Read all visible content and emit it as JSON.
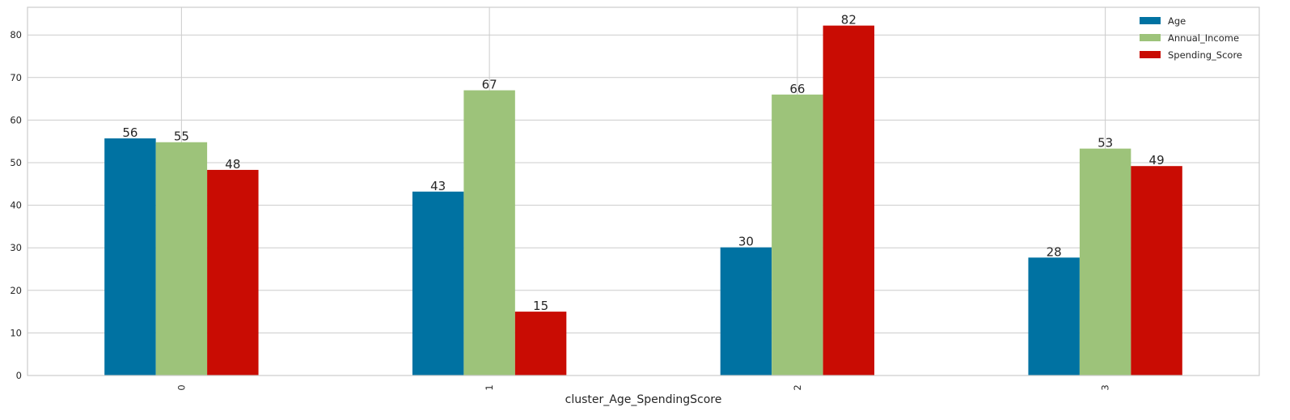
{
  "chart_data": {
    "type": "bar",
    "title": "",
    "xlabel": "cluster_Age_SpendingScore",
    "ylabel": "",
    "categories": [
      "0",
      "1",
      "2",
      "3"
    ],
    "series": [
      {
        "name": "Age",
        "color": "#0072a2",
        "values": [
          55.7,
          43.2,
          30.1,
          27.7
        ],
        "labels": [
          "56",
          "43",
          "30",
          "28"
        ]
      },
      {
        "name": "Annual_Income",
        "color": "#9dc37a",
        "values": [
          54.8,
          67.0,
          66.0,
          53.3
        ],
        "labels": [
          "55",
          "67",
          "66",
          "53"
        ]
      },
      {
        "name": "Spending_Score",
        "color": "#c90c03",
        "values": [
          48.3,
          15.0,
          82.2,
          49.2
        ],
        "labels": [
          "48",
          "15",
          "82",
          "49"
        ]
      }
    ],
    "ylim": [
      0,
      86.5
    ],
    "yticks": [
      0,
      10,
      20,
      30,
      40,
      50,
      60,
      70,
      80
    ],
    "grid": true,
    "legend_position": "top-right"
  }
}
